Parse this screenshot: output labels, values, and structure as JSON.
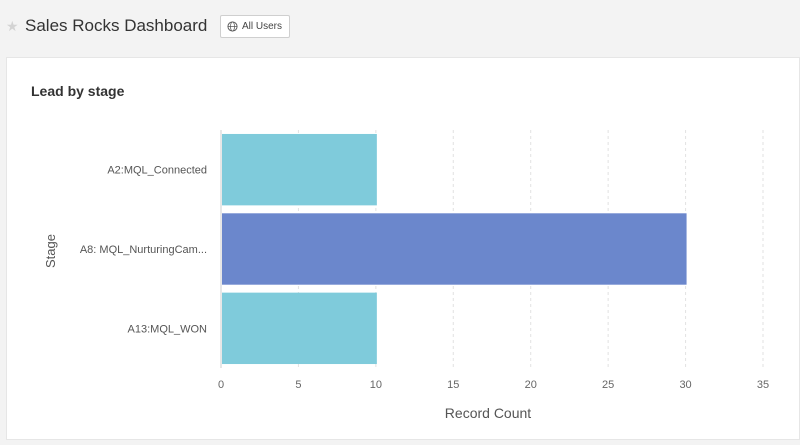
{
  "header": {
    "title": "Sales Rocks Dashboard",
    "filter_button_label": "All Users",
    "filter_icon": "globe-icon",
    "favorite_icon": "star-icon"
  },
  "card": {
    "title": "Lead by stage"
  },
  "chart_data": {
    "type": "bar",
    "orientation": "horizontal",
    "categories": [
      "A2:MQL_Connected",
      "A8: MQL_NurturingCam...",
      "A13:MQL_WON"
    ],
    "values": [
      10,
      30,
      10
    ],
    "colors": [
      "#7fcbdb",
      "#6b87cc",
      "#7fcbdb"
    ],
    "xlabel": "Record Count",
    "ylabel": "Stage",
    "xlim": [
      0,
      35
    ],
    "xticks": [
      "0",
      "5",
      "10",
      "15",
      "20",
      "25",
      "30",
      "35"
    ],
    "grid": true
  }
}
